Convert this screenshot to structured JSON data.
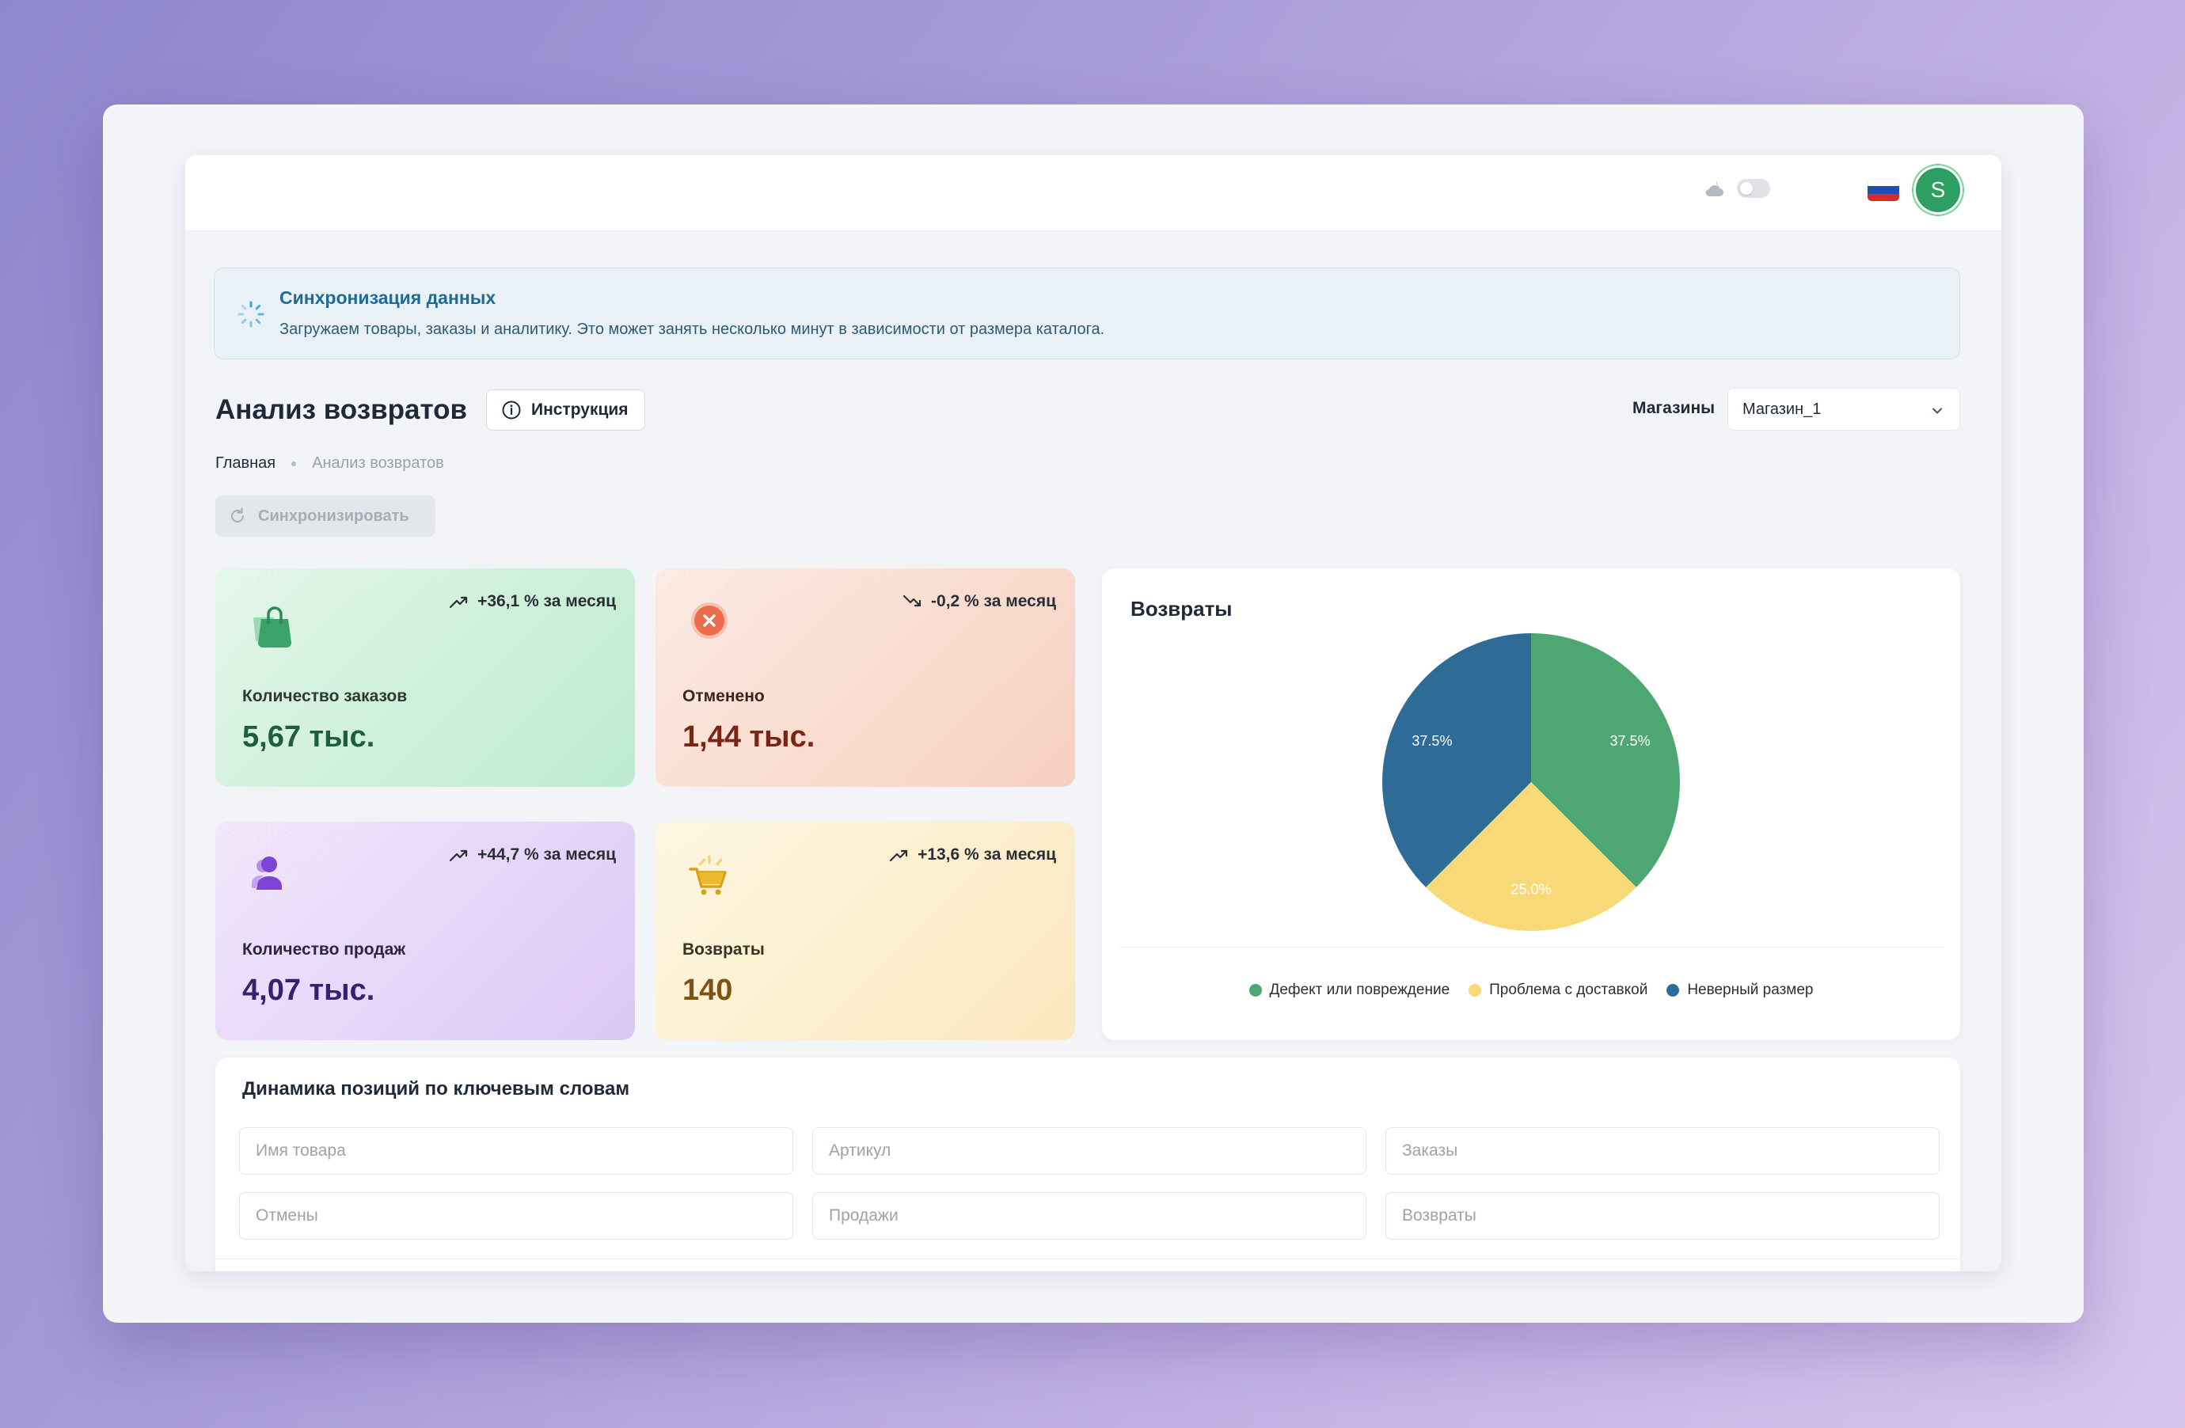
{
  "header": {
    "theme_icon": "cloud-moon-icon",
    "language_flag": "russian-flag-icon",
    "avatar_initial": "S"
  },
  "sync_banner": {
    "title": "Синхронизация данных",
    "text": "Загружаем товары, заказы и аналитику. Это может занять несколько минут в зависимости от размера каталога."
  },
  "page": {
    "title": "Анализ возвратов",
    "instruction_label": "Инструкция",
    "stores_label": "Магазины",
    "store_selected": "Магазин_1",
    "breadcrumb": {
      "home": "Главная",
      "current": "Анализ возвратов"
    },
    "sync_button_label": "Синхронизировать"
  },
  "cards": {
    "orders": {
      "icon": "shopping-bag-icon",
      "trend": "+36,1 % за месяц",
      "trend_dir": "up",
      "label": "Количество заказов",
      "value": "5,67 тыс."
    },
    "cancelled": {
      "icon": "cancel-circle-icon",
      "trend": "-0,2 % за месяц",
      "trend_dir": "down",
      "label": "Отменено",
      "value": "1,44 тыс."
    },
    "sales": {
      "icon": "user-icon",
      "trend": "+44,7 % за месяц",
      "trend_dir": "up",
      "label": "Количество продаж",
      "value": "4,07 тыс."
    },
    "returns": {
      "icon": "shopping-cart-icon",
      "trend": "+13,6 % за месяц",
      "trend_dir": "up",
      "label": "Возвраты",
      "value": "140"
    }
  },
  "returns_chart": {
    "title": "Возвраты",
    "legend": [
      "Дефект или повреждение",
      "Проблема с доставкой",
      "Неверный размер"
    ]
  },
  "chart_data": {
    "type": "pie",
    "title": "Возвраты",
    "categories": [
      "Дефект или повреждение",
      "Проблема с доставкой",
      "Неверный размер"
    ],
    "values": [
      37.5,
      25.0,
      37.5
    ],
    "labels": [
      "37.5%",
      "25.0%",
      "37.5%"
    ],
    "colors": [
      "#4ea672",
      "#f7d977",
      "#2f6b97"
    ],
    "legend_position": "bottom"
  },
  "keywords": {
    "title": "Динамика позиций по ключевым словам",
    "placeholders": {
      "product_name": "Имя товара",
      "article": "Артикул",
      "orders": "Заказы",
      "cancellations": "Отмены",
      "sales": "Продажи",
      "returns": "Возвраты"
    }
  },
  "colors": {
    "accent_green": "#2e9f63",
    "banner_title": "#1f6b92"
  }
}
